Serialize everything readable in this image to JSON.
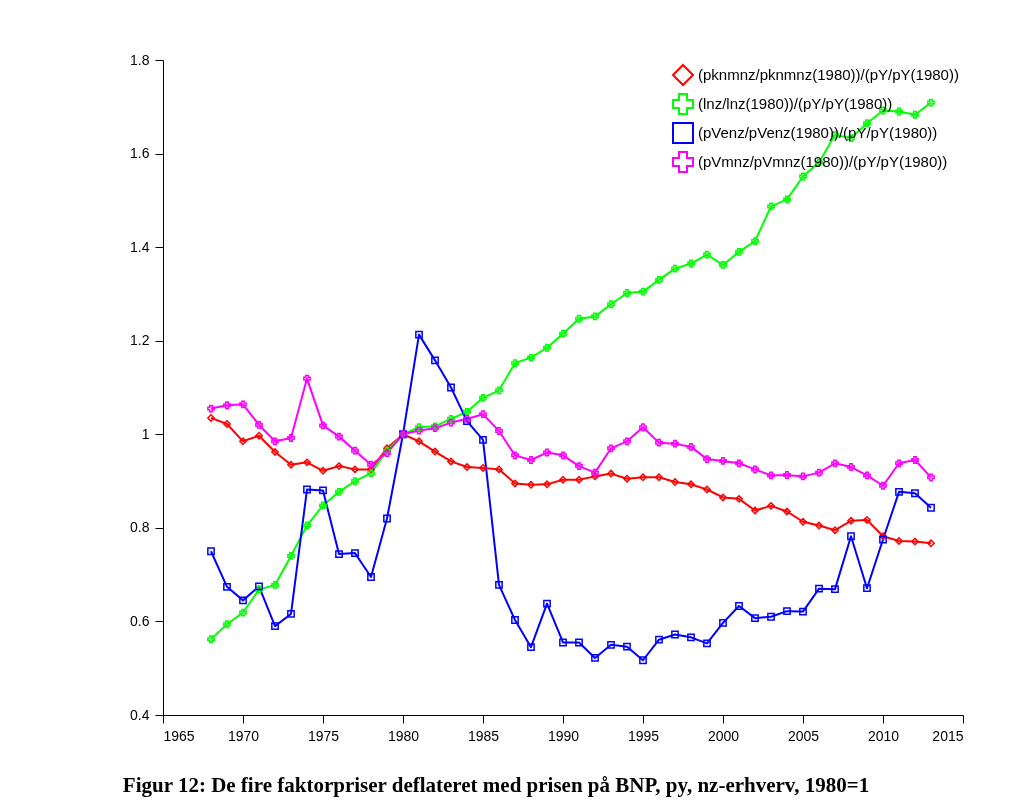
{
  "chart_data": {
    "type": "line",
    "title": "Figur 12: De fire faktorpriser deflateret med prisen på BNP, py, nz-erhverv, 1980=1",
    "x": [
      1968,
      1969,
      1970,
      1971,
      1972,
      1973,
      1974,
      1975,
      1976,
      1977,
      1978,
      1979,
      1980,
      1981,
      1982,
      1983,
      1984,
      1985,
      1986,
      1987,
      1988,
      1989,
      1990,
      1991,
      1992,
      1993,
      1994,
      1995,
      1996,
      1997,
      1998,
      1999,
      2000,
      2001,
      2002,
      2003,
      2004,
      2005,
      2006,
      2007,
      2008,
      2009,
      2010,
      2011,
      2012,
      2013
    ],
    "series": [
      {
        "name": "(pknmnz/pknmnz(1980))/(pY/pY(1980))",
        "color": "#ff0000",
        "marker": "diamond",
        "values": [
          1.035,
          1.022,
          0.985,
          0.997,
          0.962,
          0.935,
          0.94,
          0.922,
          0.932,
          0.925,
          0.925,
          0.97,
          1.0,
          0.985,
          0.963,
          0.942,
          0.93,
          0.928,
          0.925,
          0.895,
          0.892,
          0.893,
          0.903,
          0.903,
          0.91,
          0.916,
          0.905,
          0.908,
          0.908,
          0.898,
          0.893,
          0.882,
          0.865,
          0.862,
          0.837,
          0.847,
          0.835,
          0.813,
          0.805,
          0.795,
          0.815,
          0.817,
          0.782,
          0.772,
          0.771,
          0.767
        ]
      },
      {
        "name": "(lnz/lnz(1980))/(pY/pY(1980))",
        "color": "#00ff00",
        "marker": "cross",
        "values": [
          0.562,
          0.594,
          0.619,
          0.668,
          0.678,
          0.74,
          0.805,
          0.848,
          0.877,
          0.9,
          0.917,
          0.965,
          1.0,
          1.015,
          1.017,
          1.033,
          1.048,
          1.078,
          1.094,
          1.152,
          1.164,
          1.185,
          1.215,
          1.247,
          1.252,
          1.278,
          1.302,
          1.305,
          1.33,
          1.354,
          1.365,
          1.384,
          1.362,
          1.39,
          1.413,
          1.487,
          1.502,
          1.551,
          1.581,
          1.64,
          1.633,
          1.665,
          1.692,
          1.69,
          1.683,
          1.709
        ]
      },
      {
        "name": "(pVenz/pVenz(1980))/(pY/pY(1980))",
        "color": "#0000ff",
        "marker": "square",
        "values": [
          0.75,
          0.674,
          0.645,
          0.675,
          0.59,
          0.616,
          0.882,
          0.88,
          0.744,
          0.746,
          0.695,
          0.82,
          1.0,
          1.213,
          1.158,
          1.1,
          1.028,
          0.988,
          0.678,
          0.603,
          0.545,
          0.638,
          0.555,
          0.555,
          0.522,
          0.55,
          0.546,
          0.517,
          0.561,
          0.572,
          0.566,
          0.553,
          0.597,
          0.633,
          0.607,
          0.61,
          0.622,
          0.621,
          0.67,
          0.669,
          0.782,
          0.671,
          0.775,
          0.877,
          0.874,
          0.843
        ]
      },
      {
        "name": "(pVmnz/pVmnz(1980))/(pY/pY(1980))",
        "color": "#ff00ff",
        "marker": "cross",
        "values": [
          1.055,
          1.062,
          1.064,
          1.02,
          0.985,
          0.992,
          1.119,
          1.019,
          0.995,
          0.965,
          0.935,
          0.96,
          1.0,
          1.008,
          1.013,
          1.025,
          1.033,
          1.043,
          1.007,
          0.955,
          0.945,
          0.961,
          0.955,
          0.932,
          0.918,
          0.97,
          0.985,
          1.015,
          0.982,
          0.98,
          0.973,
          0.947,
          0.943,
          0.938,
          0.925,
          0.912,
          0.913,
          0.91,
          0.918,
          0.938,
          0.93,
          0.912,
          0.89,
          0.938,
          0.945,
          0.908
        ]
      }
    ],
    "xlim": [
      1965,
      2015
    ],
    "xticks": [
      1965,
      1970,
      1975,
      1980,
      1985,
      1990,
      1995,
      2000,
      2005,
      2010,
      2015
    ],
    "ylim": [
      0.4,
      1.8
    ],
    "yticks": [
      0.4,
      0.6,
      0.8,
      1,
      1.2,
      1.4,
      1.6,
      1.8
    ],
    "grid": false,
    "legend": "top right",
    "line_style": "solid"
  }
}
